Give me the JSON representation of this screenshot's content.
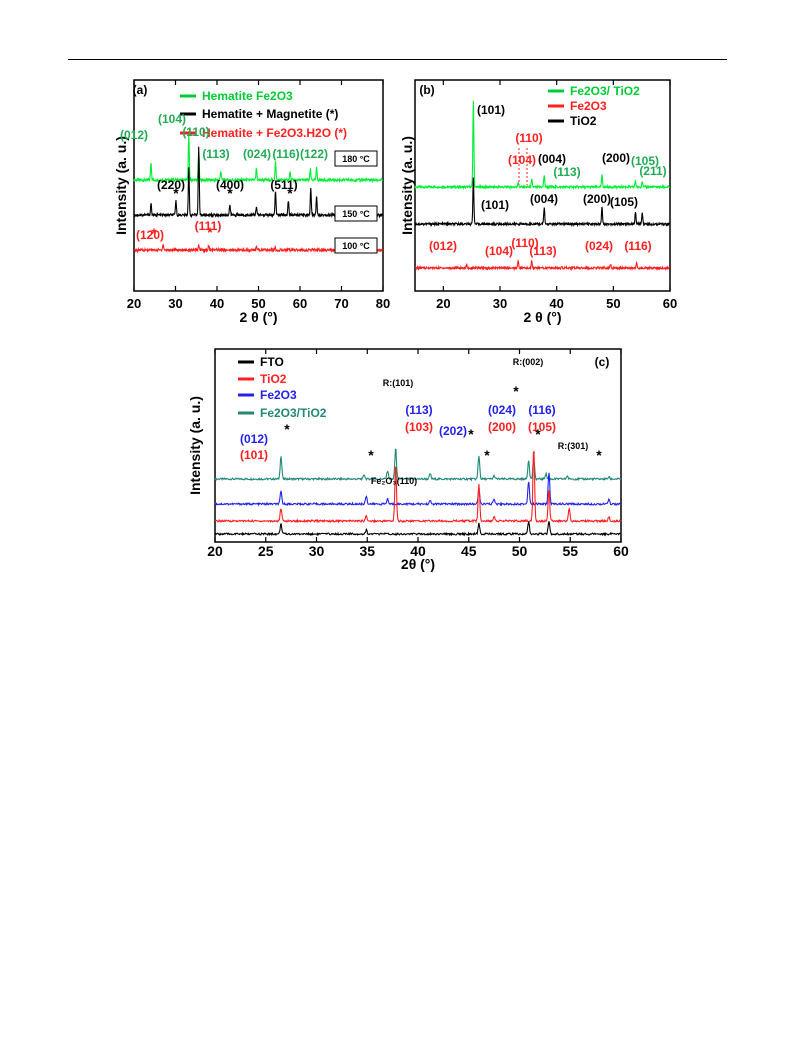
{
  "chart_data": [
    {
      "type": "line",
      "panel_label": "(a)",
      "xlabel": "2 θ (°)",
      "ylabel": "Intensity (a. u.)",
      "xlim": [
        20,
        80
      ],
      "xticks": [
        "20",
        "30",
        "40",
        "50",
        "60",
        "70",
        "80"
      ],
      "legend": [
        {
          "marker": "–",
          "text": "Hematite  Fe2O3",
          "color": "#00cc33"
        },
        {
          "marker": "–",
          "text": "Hematite  + Magnetite (*)",
          "color": "#000000"
        },
        {
          "marker": "–",
          "text": "Hematite + Fe2O3.H2O (*)",
          "color": "#ff2020"
        }
      ],
      "series": [
        {
          "label_box": "180 °C",
          "color": "#00ee33",
          "baseline": 0.68,
          "peaks": [
            [
              24.1,
              0.12
            ],
            [
              33.2,
              0.3
            ],
            [
              35.6,
              0.18
            ],
            [
              40.9,
              0.06
            ],
            [
              49.5,
              0.08
            ],
            [
              54.1,
              0.12
            ],
            [
              57.6,
              0.05
            ],
            [
              62.5,
              0.07
            ],
            [
              64.0,
              0.08
            ]
          ]
        },
        {
          "label_box": "150 °C",
          "color": "#000000",
          "baseline": 0.35,
          "peaks": [
            [
              24.1,
              0.08
            ],
            [
              30.1,
              0.1
            ],
            [
              33.2,
              0.32
            ],
            [
              35.6,
              0.46
            ],
            [
              43.1,
              0.07
            ],
            [
              49.5,
              0.06
            ],
            [
              54.1,
              0.16
            ],
            [
              57.2,
              0.1
            ],
            [
              62.6,
              0.18
            ],
            [
              64.0,
              0.13
            ]
          ]
        },
        {
          "label_box": "100 °C",
          "color": "#ff2020",
          "baseline": 0.05,
          "peaks": [
            [
              27.0,
              0.04
            ],
            [
              35.6,
              0.03
            ],
            [
              38.0,
              0.03
            ],
            [
              49.5,
              0.02
            ],
            [
              54.0,
              0.02
            ]
          ]
        }
      ],
      "annotations": [
        {
          "text": "(012)",
          "x": 24.0,
          "color": "#22aa55"
        },
        {
          "text": "(104)",
          "x": 32.8,
          "color": "#22aa55"
        },
        {
          "text": "(110)",
          "x": 36.5,
          "color": "#22aa55"
        },
        {
          "text": "(113)",
          "x": 41.0,
          "color": "#22aa55"
        },
        {
          "text": "(024)",
          "x": 48.5,
          "color": "#22aa55"
        },
        {
          "text": "(116)",
          "x": 55.5,
          "color": "#22aa55"
        },
        {
          "text": "(122)",
          "x": 63.0,
          "color": "#22aa55"
        },
        {
          "text": "(220)",
          "x": 27.5,
          "color": "#000000"
        },
        {
          "text": "(400)",
          "x": 41.5,
          "color": "#000000"
        },
        {
          "text": "(511)",
          "x": 56.0,
          "color": "#000000"
        },
        {
          "text": "(120)",
          "x": 22.5,
          "color": "#ff2020"
        },
        {
          "text": "(111)",
          "x": 38.5,
          "color": "#ff2020"
        }
      ]
    },
    {
      "type": "line",
      "panel_label": "(b)",
      "xlabel": "2 θ (°)",
      "ylabel": "Intensity (a. u.)",
      "xlim": [
        15,
        60
      ],
      "xticks": [
        "20",
        "30",
        "40",
        "50",
        "60"
      ],
      "legend": [
        {
          "text": "Fe2O3/ TiO2",
          "color": "#00cc33"
        },
        {
          "text": "Fe2O3",
          "color": "#ff2020"
        },
        {
          "text": "TiO2",
          "color": "#000000"
        }
      ],
      "series": [
        {
          "name": "Fe2O3/ TiO2",
          "color": "#00ee33",
          "baseline": 0.7,
          "peaks": [
            [
              25.3,
              0.72
            ],
            [
              33.2,
              0.04
            ],
            [
              35.6,
              0.06
            ],
            [
              37.8,
              0.1
            ],
            [
              48.0,
              0.1
            ],
            [
              53.9,
              0.05
            ],
            [
              55.1,
              0.05
            ]
          ]
        },
        {
          "name": "TiO2",
          "color": "#000000",
          "baseline": 0.38,
          "peaks": [
            [
              25.3,
              0.4
            ],
            [
              37.8,
              0.14
            ],
            [
              48.0,
              0.15
            ],
            [
              53.9,
              0.1
            ],
            [
              55.1,
              0.1
            ]
          ]
        },
        {
          "name": "Fe2O3",
          "color": "#ff2020",
          "baseline": 0.06,
          "peaks": [
            [
              24.1,
              0.03
            ],
            [
              33.2,
              0.06
            ],
            [
              35.6,
              0.06
            ],
            [
              40.9,
              0.02
            ],
            [
              49.5,
              0.03
            ],
            [
              54.1,
              0.04
            ]
          ]
        }
      ],
      "annotations": [
        {
          "text": "(101)",
          "x": 27.0,
          "color": "#000000"
        },
        {
          "text": "(110)",
          "x": 36.0,
          "color": "#ff2020"
        },
        {
          "text": "(104)",
          "x": 34.0,
          "color": "#ff2020"
        },
        {
          "text": "(004)",
          "x": 38.0,
          "color": "#000000"
        },
        {
          "text": "(113)",
          "x": 41.5,
          "color": "#22aa55"
        },
        {
          "text": "(200)",
          "x": 48.0,
          "color": "#000000"
        },
        {
          "text": "(105)",
          "x": 51.5,
          "color": "#22aa55"
        },
        {
          "text": "(211)",
          "x": 56.0,
          "color": "#22aa55"
        },
        {
          "text": "(101)",
          "x": 28.0,
          "color": "#000000"
        },
        {
          "text": "(004)",
          "x": 37.5,
          "color": "#000000"
        },
        {
          "text": "(200)",
          "x": 46.5,
          "color": "#000000"
        },
        {
          "text": "(105)",
          "x": 52.0,
          "color": "#000000"
        },
        {
          "text": "(012)",
          "x": 23.0,
          "color": "#ff2020"
        },
        {
          "text": "(104)",
          "x": 31.0,
          "color": "#ff2020"
        },
        {
          "text": "(110)",
          "x": 34.8,
          "color": "#ff2020"
        },
        {
          "text": "(113)",
          "x": 39.0,
          "color": "#ff2020"
        },
        {
          "text": "(024)",
          "x": 47.5,
          "color": "#ff2020"
        },
        {
          "text": "(116)",
          "x": 53.5,
          "color": "#ff2020"
        }
      ]
    },
    {
      "type": "line",
      "panel_label": "(c)",
      "xlabel": "2θ (°)",
      "ylabel": "Intensity (a. u.)",
      "xlim": [
        20,
        60
      ],
      "xticks": [
        "20",
        "25",
        "30",
        "35",
        "40",
        "45",
        "50",
        "55",
        "60"
      ],
      "legend": [
        {
          "text": "FTO",
          "color": "#000000"
        },
        {
          "text": "TiO2",
          "color": "#ff2020"
        },
        {
          "text": "Fe2O3",
          "color": "#2222ee"
        },
        {
          "text": "Fe2O3/TiO2",
          "color": "#228877"
        }
      ],
      "series": [
        {
          "name": "Fe2O3/TiO2",
          "color": "#228877",
          "baseline": 0.4,
          "peaks": [
            [
              26.5,
              0.22
            ],
            [
              34.7,
              0.04
            ],
            [
              37.0,
              0.08
            ],
            [
              37.8,
              0.3
            ],
            [
              41.2,
              0.05
            ],
            [
              46.0,
              0.22
            ],
            [
              47.5,
              0.03
            ],
            [
              50.9,
              0.18
            ],
            [
              51.4,
              0.2
            ],
            [
              52.6,
              0.05
            ],
            [
              54.7,
              0.03
            ],
            [
              58.8,
              0.02
            ]
          ]
        },
        {
          "name": "Fe2O3",
          "color": "#2222ee",
          "baseline": 0.22,
          "peaks": [
            [
              26.5,
              0.12
            ],
            [
              34.9,
              0.08
            ],
            [
              37.0,
              0.05
            ],
            [
              41.2,
              0.03
            ],
            [
              46.0,
              0.14
            ],
            [
              47.5,
              0.05
            ],
            [
              50.9,
              0.22
            ],
            [
              52.9,
              0.3
            ],
            [
              58.8,
              0.04
            ]
          ]
        },
        {
          "name": "TiO2",
          "color": "#ff2020",
          "baseline": 0.1,
          "peaks": [
            [
              26.5,
              0.12
            ],
            [
              34.9,
              0.05
            ],
            [
              37.8,
              0.55
            ],
            [
              46.0,
              0.35
            ],
            [
              47.5,
              0.05
            ],
            [
              51.4,
              0.7
            ],
            [
              52.9,
              0.3
            ],
            [
              54.9,
              0.12
            ],
            [
              58.8,
              0.04
            ]
          ]
        },
        {
          "name": "FTO",
          "color": "#000000",
          "baseline": 0.03,
          "peaks": [
            [
              26.5,
              0.1
            ],
            [
              34.9,
              0.04
            ],
            [
              46.0,
              0.1
            ],
            [
              50.9,
              0.12
            ],
            [
              52.9,
              0.12
            ]
          ]
        }
      ],
      "annotations": [
        {
          "text": "(012)",
          "x": 22.8,
          "color": "#2222ee"
        },
        {
          "text": "(101)",
          "x": 22.8,
          "color": "#ff2020"
        },
        {
          "text": "R:(101)",
          "x": 36.5,
          "color": "#000000"
        },
        {
          "text": "Fe₂O₃(110)",
          "x": 37.0,
          "color": "#000000"
        },
        {
          "text": "(113)",
          "x": 41.0,
          "color": "#2222ee"
        },
        {
          "text": "(103)",
          "x": 41.0,
          "color": "#ff2020"
        },
        {
          "text": "(202)",
          "x": 44.0,
          "color": "#2222ee"
        },
        {
          "text": "(024)",
          "x": 49.0,
          "color": "#2222ee"
        },
        {
          "text": "(200)",
          "x": 49.0,
          "color": "#ff2020"
        },
        {
          "text": "R:(002)",
          "x": 51.5,
          "color": "#000000"
        },
        {
          "text": "(116)",
          "x": 54.7,
          "color": "#2222ee"
        },
        {
          "text": "(105)",
          "x": 54.7,
          "color": "#ff2020"
        },
        {
          "text": "R:(301)",
          "x": 56.5,
          "color": "#000000"
        }
      ]
    }
  ]
}
